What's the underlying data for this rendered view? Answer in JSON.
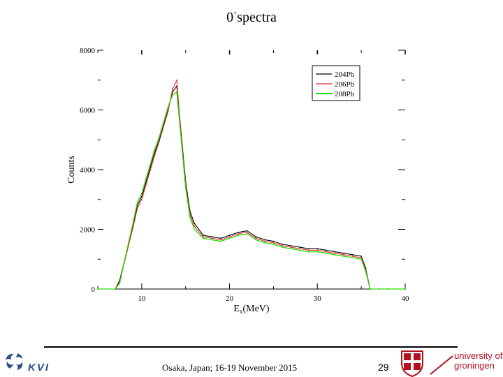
{
  "slide": {
    "title_main": "0",
    "title_sup": "+",
    "title_rest": "spectra",
    "footer": "Osaka, Japan; 16-19 November 2015",
    "page_number": "29",
    "logo_left": "KVI",
    "logo_right_line1": "university of",
    "logo_right_line2": "groningen"
  },
  "colors": {
    "s204": "#000000",
    "s206": "#e8202a",
    "s208": "#22dd00"
  },
  "chart_data": {
    "type": "line",
    "xlabel": "E",
    "xlabel_sub": "x",
    "xlabel_unit": "(MeV)",
    "ylabel": "Counts",
    "xlim": [
      5,
      40
    ],
    "ylim": [
      0,
      8000
    ],
    "xticks": [
      10,
      20,
      30,
      40
    ],
    "xtick_labels": [
      "10",
      "20",
      "30",
      "40"
    ],
    "yticks": [
      0,
      2000,
      4000,
      6000,
      8000
    ],
    "ytick_labels": [
      "0",
      "2000",
      "4000",
      "6000",
      "8000"
    ],
    "grid": false,
    "legend_position": "top-right",
    "x": [
      5,
      7,
      7.5,
      8,
      8.5,
      9,
      9.5,
      10,
      10.5,
      11,
      11.5,
      12,
      12.5,
      13,
      13.5,
      14,
      14.5,
      15,
      15.5,
      16,
      17,
      18,
      19,
      20,
      21,
      22,
      23,
      24,
      25,
      26,
      27,
      28,
      29,
      30,
      31,
      32,
      33,
      34,
      35,
      35.5,
      36,
      37,
      38,
      40
    ],
    "series": [
      {
        "name": "204Pb",
        "values": [
          0,
          0,
          300,
          900,
          1500,
          2100,
          2800,
          3100,
          3600,
          4100,
          4600,
          5000,
          5500,
          6000,
          6600,
          6800,
          5200,
          3600,
          2600,
          2200,
          1800,
          1750,
          1700,
          1800,
          1900,
          1950,
          1750,
          1650,
          1600,
          1500,
          1450,
          1400,
          1350,
          1350,
          1300,
          1250,
          1200,
          1150,
          1100,
          700,
          0,
          0,
          0,
          0
        ]
      },
      {
        "name": "206Pb",
        "values": [
          0,
          0,
          250,
          850,
          1450,
          2050,
          2700,
          3000,
          3500,
          4000,
          4500,
          4950,
          5450,
          5950,
          6700,
          7000,
          5100,
          3500,
          2500,
          2100,
          1750,
          1700,
          1650,
          1750,
          1850,
          1900,
          1700,
          1600,
          1550,
          1450,
          1400,
          1350,
          1300,
          1300,
          1250,
          1200,
          1150,
          1100,
          1050,
          650,
          0,
          0,
          0,
          0
        ]
      },
      {
        "name": "208Pb",
        "values": [
          0,
          0,
          200,
          900,
          1550,
          2200,
          2900,
          3200,
          3700,
          4200,
          4700,
          5100,
          5600,
          6100,
          6500,
          6600,
          5000,
          3400,
          2400,
          2000,
          1700,
          1650,
          1600,
          1700,
          1800,
          1850,
          1650,
          1550,
          1500,
          1400,
          1350,
          1300,
          1250,
          1250,
          1200,
          1150,
          1100,
          1050,
          1000,
          600,
          0,
          0,
          0,
          0
        ]
      }
    ]
  }
}
